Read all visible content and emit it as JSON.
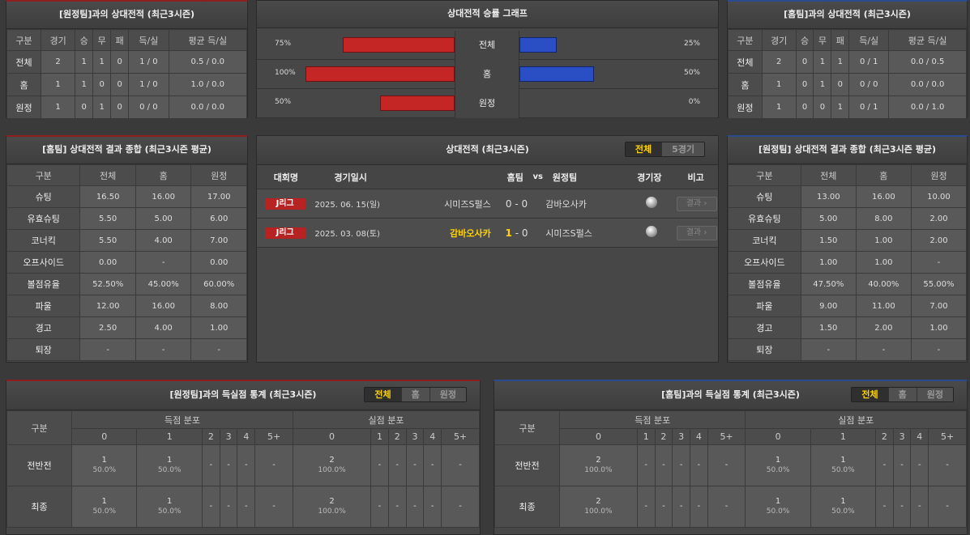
{
  "away_record": {
    "title": "[원정팀]과의 상대전적 (최근3시즌)",
    "headers": [
      "구분",
      "경기",
      "승",
      "무",
      "패",
      "득/실",
      "평균 득/실"
    ],
    "rows": [
      [
        "전체",
        "2",
        "1",
        "1",
        "0",
        "1 / 0",
        "0.5 / 0.0"
      ],
      [
        "홈",
        "1",
        "1",
        "0",
        "0",
        "1 / 0",
        "1.0 / 0.0"
      ],
      [
        "원정",
        "1",
        "0",
        "1",
        "0",
        "0 / 0",
        "0.0 / 0.0"
      ]
    ]
  },
  "home_record": {
    "title": "[홈팀]과의 상대전적 (최근3시즌)",
    "headers": [
      "구분",
      "경기",
      "승",
      "무",
      "패",
      "득/실",
      "평균 득/실"
    ],
    "rows": [
      [
        "전체",
        "2",
        "0",
        "1",
        "1",
        "0 / 1",
        "0.0 / 0.5"
      ],
      [
        "홈",
        "1",
        "0",
        "1",
        "0",
        "0 / 0",
        "0.0 / 0.0"
      ],
      [
        "원정",
        "1",
        "0",
        "0",
        "1",
        "0 / 1",
        "0.0 / 1.0"
      ]
    ]
  },
  "win_graph": {
    "title": "상대전적 승률 그래프",
    "colors": {
      "left": "#c42626",
      "right": "#2a4fc4"
    },
    "rows": [
      {
        "label": "전체",
        "left": "75%",
        "left_value": 75,
        "right": "25%",
        "right_value": 25
      },
      {
        "label": "홈",
        "left": "100%",
        "left_value": 100,
        "right": "50%",
        "right_value": 50
      },
      {
        "label": "원정",
        "left": "50%",
        "left_value": 50,
        "right": "0%",
        "right_value": 0
      }
    ]
  },
  "home_summary": {
    "title": "[홈팀] 상대전적 결과 종합 (최근3시즌 평균)",
    "headers": [
      "구분",
      "전체",
      "홈",
      "원정"
    ],
    "rows": [
      [
        "슈팅",
        "16.50",
        "16.00",
        "17.00"
      ],
      [
        "유효슈팅",
        "5.50",
        "5.00",
        "6.00"
      ],
      [
        "코너킥",
        "5.50",
        "4.00",
        "7.00"
      ],
      [
        "오프사이드",
        "0.00",
        "-",
        "0.00"
      ],
      [
        "볼점유율",
        "52.50%",
        "45.00%",
        "60.00%"
      ],
      [
        "파울",
        "12.00",
        "16.00",
        "8.00"
      ],
      [
        "경고",
        "2.50",
        "4.00",
        "1.00"
      ],
      [
        "퇴장",
        "-",
        "-",
        "-"
      ]
    ]
  },
  "away_summary": {
    "title": "[원정팀] 상대전적 결과 종합 (최근3시즌 평균)",
    "headers": [
      "구분",
      "전체",
      "홈",
      "원정"
    ],
    "rows": [
      [
        "슈팅",
        "13.00",
        "16.00",
        "10.00"
      ],
      [
        "유효슈팅",
        "5.00",
        "8.00",
        "2.00"
      ],
      [
        "코너킥",
        "1.50",
        "1.00",
        "2.00"
      ],
      [
        "오프사이드",
        "1.00",
        "1.00",
        "-"
      ],
      [
        "볼점유율",
        "47.50%",
        "40.00%",
        "55.00%"
      ],
      [
        "파울",
        "9.00",
        "11.00",
        "7.00"
      ],
      [
        "경고",
        "1.50",
        "2.00",
        "1.00"
      ],
      [
        "퇴장",
        "-",
        "-",
        "-"
      ]
    ]
  },
  "matches": {
    "title": "상대전적 (최근3시즌)",
    "tabs": [
      "전체",
      "5경기"
    ],
    "active_tab": 0,
    "headers": {
      "league": "대회명",
      "date": "경기일시",
      "home": "홈팀",
      "vs": "vs",
      "away": "원정팀",
      "venue": "경기장",
      "note": "비고"
    },
    "rows": [
      {
        "league": "J리그",
        "date": "2025. 06. 15(일)",
        "home": "시미즈S펄스",
        "home_score": "0",
        "sep": "-",
        "away_score": "0",
        "away": "감바오사카",
        "winner": "none",
        "result": "결과 ›"
      },
      {
        "league": "J리그",
        "date": "2025. 03. 08(토)",
        "home": "감바오사카",
        "home_score": "1",
        "sep": "-",
        "away_score": "0",
        "away": "시미즈S펄스",
        "winner": "home",
        "result": "결과 ›"
      }
    ]
  },
  "away_goals": {
    "title": "[원정팀]과의 득실점 통계 (최근3시즌)",
    "tabs": [
      "전체",
      "홈",
      "원정"
    ],
    "rowhead": "구분",
    "scored": "득점 분포",
    "conceded": "실점 분포",
    "cols": [
      "0",
      "1",
      "2",
      "3",
      "4",
      "5+"
    ],
    "rows": [
      {
        "label": "전반전",
        "cells": [
          [
            "1",
            "50.0%"
          ],
          [
            "1",
            "50.0%"
          ],
          [
            "-"
          ],
          [
            "-"
          ],
          [
            "-"
          ],
          [
            "-"
          ],
          [
            "2",
            "100.0%"
          ],
          [
            "-"
          ],
          [
            "-"
          ],
          [
            "-"
          ],
          [
            "-"
          ],
          [
            "-"
          ]
        ]
      },
      {
        "label": "최종",
        "cells": [
          [
            "1",
            "50.0%"
          ],
          [
            "1",
            "50.0%"
          ],
          [
            "-"
          ],
          [
            "-"
          ],
          [
            "-"
          ],
          [
            "-"
          ],
          [
            "2",
            "100.0%"
          ],
          [
            "-"
          ],
          [
            "-"
          ],
          [
            "-"
          ],
          [
            "-"
          ],
          [
            "-"
          ]
        ]
      }
    ]
  },
  "home_goals": {
    "title": "[홈팀]과의 득실점 통계 (최근3시즌)",
    "tabs": [
      "전체",
      "홈",
      "원정"
    ],
    "rowhead": "구분",
    "scored": "득점 분포",
    "conceded": "실점 분포",
    "cols": [
      "0",
      "1",
      "2",
      "3",
      "4",
      "5+"
    ],
    "rows": [
      {
        "label": "전반전",
        "cells": [
          [
            "2",
            "100.0%"
          ],
          [
            "-"
          ],
          [
            "-"
          ],
          [
            "-"
          ],
          [
            "-"
          ],
          [
            "-"
          ],
          [
            "1",
            "50.0%"
          ],
          [
            "1",
            "50.0%"
          ],
          [
            "-"
          ],
          [
            "-"
          ],
          [
            "-"
          ],
          [
            "-"
          ]
        ]
      },
      {
        "label": "최종",
        "cells": [
          [
            "2",
            "100.0%"
          ],
          [
            "-"
          ],
          [
            "-"
          ],
          [
            "-"
          ],
          [
            "-"
          ],
          [
            "-"
          ],
          [
            "1",
            "50.0%"
          ],
          [
            "1",
            "50.0%"
          ],
          [
            "-"
          ],
          [
            "-"
          ],
          [
            "-"
          ],
          [
            "-"
          ]
        ]
      }
    ]
  }
}
